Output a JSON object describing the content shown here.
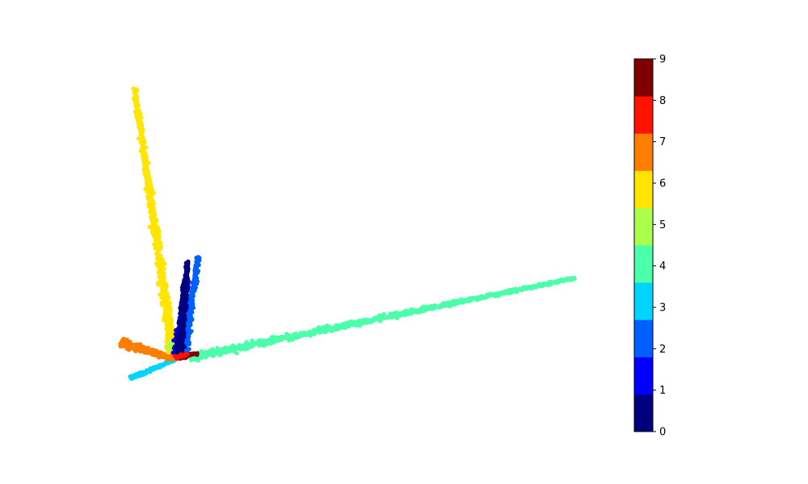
{
  "chart_data": {
    "type": "scatter",
    "title": "",
    "xlabel": "",
    "ylabel": "",
    "axes_visible": false,
    "grid": false,
    "marker": "small filled circles",
    "xlim": [
      0,
      100
    ],
    "ylim": [
      0,
      100
    ],
    "colorbar": {
      "label": "",
      "range": [
        0,
        9
      ],
      "position": "right",
      "ticks": [
        "0",
        "1",
        "2",
        "3",
        "4",
        "5",
        "6",
        "7",
        "8",
        "9"
      ],
      "colormap": "jet (10 discrete levels)",
      "colors": [
        "#00007f",
        "#0000fe",
        "#0060ff",
        "#00d4ff",
        "#4cffaa",
        "#aaff4c",
        "#ffe500",
        "#ff7d00",
        "#fe1300",
        "#7f0000"
      ]
    },
    "clusters": [
      {
        "label": 0,
        "color": "#00007f",
        "shape": "elongated streak",
        "start": [
          12.6,
          17.6
        ],
        "end": [
          14.4,
          44.6
        ],
        "spread": 0.5,
        "count": 450
      },
      {
        "label": 1,
        "color": "#0000fe",
        "shape": "elongated streak",
        "start": [
          12.2,
          17.6
        ],
        "end": [
          14.2,
          38.9
        ],
        "spread": 0.6,
        "count": 350
      },
      {
        "label": 2,
        "color": "#0060ff",
        "shape": "elongated streak",
        "start": [
          13.6,
          17.6
        ],
        "end": [
          16.7,
          45.9
        ],
        "spread": 0.5,
        "count": 350
      },
      {
        "label": 3,
        "color": "#00d4ff",
        "shape": "short streak",
        "start": [
          2.1,
          10.3
        ],
        "end": [
          11.5,
          15.5
        ],
        "spread": 0.3,
        "count": 200
      },
      {
        "label": 4,
        "color": "#4cffaa",
        "shape": "long diagonal streak",
        "start": [
          15.0,
          16.3
        ],
        "end": [
          98.5,
          39.7
        ],
        "spread": 0.6,
        "count": 1100
      },
      {
        "label": 5,
        "color": "#aaff4c",
        "shape": "small blob",
        "start": [
          10.3,
          19.2
        ],
        "end": [
          13.2,
          21.3
        ],
        "spread": 0.6,
        "count": 40
      },
      {
        "label": 6,
        "color": "#ffe500",
        "shape": "long near-vertical streak",
        "start": [
          11.2,
          17.9
        ],
        "end": [
          2.9,
          95.5
        ],
        "spread": 0.6,
        "count": 900
      },
      {
        "label": 7,
        "color": "#ff7d00",
        "shape": "short streak",
        "start": [
          0.0,
          20.8
        ],
        "end": [
          11.2,
          15.9
        ],
        "spread": 0.7,
        "count": 350
      },
      {
        "label": 8,
        "color": "#fe1300",
        "shape": "small blob",
        "start": [
          11.8,
          16.3
        ],
        "end": [
          14.4,
          17.4
        ],
        "spread": 0.4,
        "count": 25
      },
      {
        "label": 9,
        "color": "#7f0000",
        "shape": "small blob",
        "start": [
          12.4,
          16.3
        ],
        "end": [
          16.5,
          17.6
        ],
        "spread": 0.4,
        "count": 45
      }
    ]
  }
}
